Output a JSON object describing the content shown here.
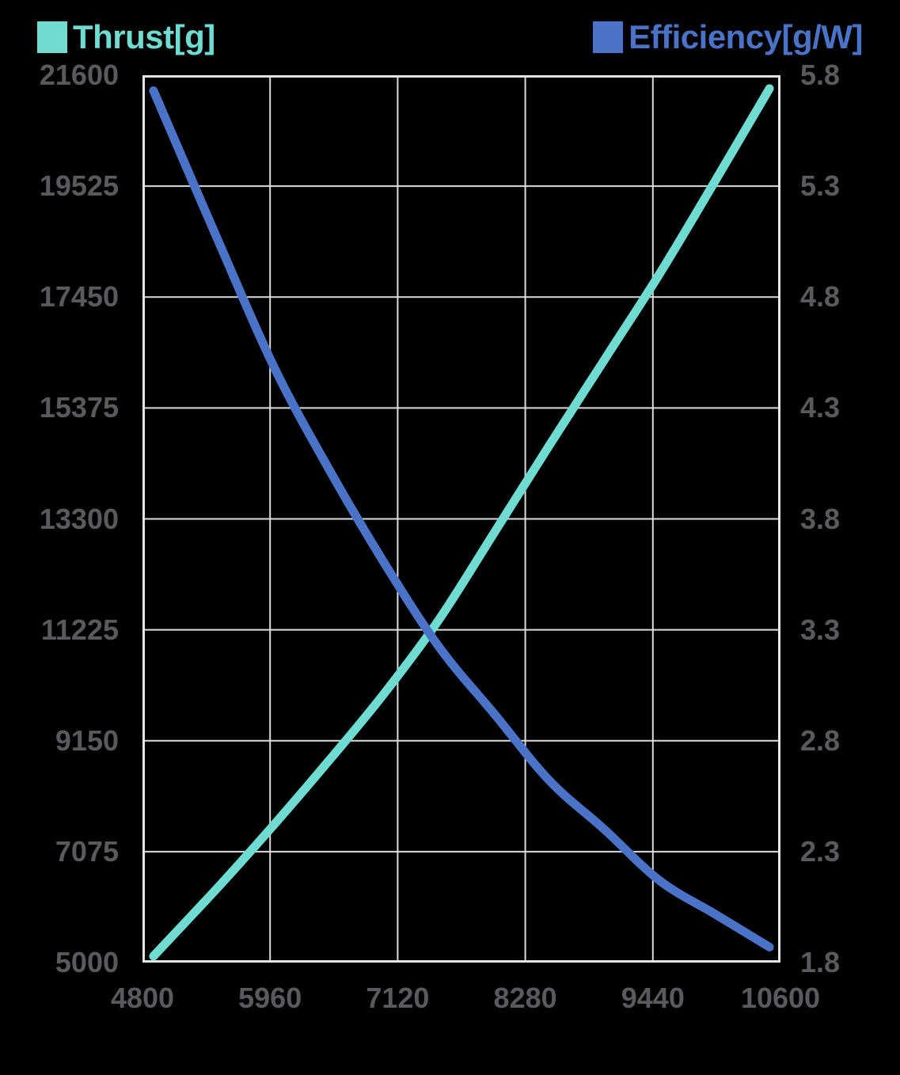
{
  "page": {
    "background": "#000000"
  },
  "legend": {
    "thrust": {
      "label": "Thrust[g]",
      "color": "#6FDBD1"
    },
    "efficiency": {
      "label": "Efficiency[g/W]",
      "color": "#4A73C8"
    }
  },
  "axes": {
    "left": {
      "ticks": [
        "21600",
        "19525",
        "17450",
        "15375",
        "13300",
        "11225",
        "9150",
        "7075",
        "5000"
      ]
    },
    "right": {
      "ticks": [
        "5.8",
        "5.3",
        "4.8",
        "4.3",
        "3.8",
        "3.3",
        "2.8",
        "2.3",
        "1.8"
      ]
    },
    "x": {
      "ticks": [
        "4800",
        "5960",
        "7120",
        "8280",
        "9440",
        "10600"
      ]
    }
  },
  "chart_data": {
    "type": "line",
    "title": "",
    "xlabel": "",
    "x_range": [
      4800,
      10600
    ],
    "x_tick_values": [
      4800,
      5960,
      7120,
      8280,
      9440,
      10600
    ],
    "left_axis": {
      "label": "Thrust[g]",
      "range": [
        5000,
        21600
      ],
      "tick_step": 2075
    },
    "right_axis": {
      "label": "Efficiency[g/W]",
      "range": [
        1.8,
        5.8
      ],
      "tick_step": 0.5
    },
    "grid": true,
    "legend_position": "top",
    "x": [
      4900,
      5500,
      6000,
      6500,
      7000,
      7500,
      8000,
      8500,
      9000,
      9500,
      10000,
      10500
    ],
    "series": [
      {
        "name": "Thrust[g]",
        "axis": "left",
        "color": "#6FDBD1",
        "values": [
          5120,
          6440,
          7590,
          8790,
          10040,
          11430,
          13050,
          14680,
          16280,
          17880,
          19600,
          21350
        ]
      },
      {
        "name": "Efficiency[g/W]",
        "axis": "right",
        "color": "#4A73C8",
        "values": [
          5.73,
          5.04,
          4.48,
          4.02,
          3.6,
          3.22,
          2.92,
          2.62,
          2.4,
          2.17,
          2.02,
          1.87
        ]
      }
    ],
    "colors": {
      "grid": "#DCDCDC",
      "plot_border": "#E4E4E4",
      "tick_label": "#5A5A5C",
      "background": "#000000"
    }
  }
}
